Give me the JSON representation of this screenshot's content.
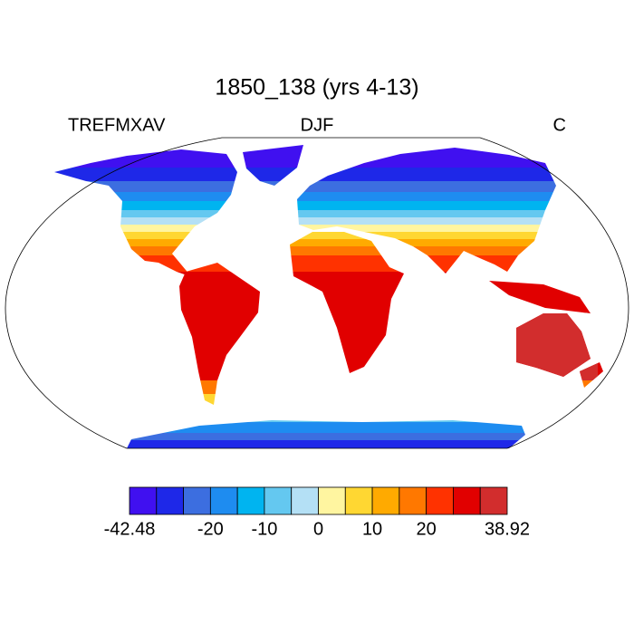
{
  "title": "1850_138 (yrs 4-13)",
  "left_string": "TREFMXAV",
  "center_string": "DJF",
  "right_string": "C",
  "colorbar": {
    "colors": [
      "#4010f0",
      "#1e28e8",
      "#3c6ee0",
      "#1e8cf0",
      "#00b4f0",
      "#64c8f0",
      "#b4e0f5",
      "#fff5a0",
      "#ffd732",
      "#ffaa00",
      "#ff7800",
      "#ff3200",
      "#e10000",
      "#d22d2d"
    ],
    "levels": [
      -42.48,
      -30,
      -25,
      -20,
      -15,
      -10,
      -5,
      0,
      5,
      10,
      15,
      20,
      25,
      30,
      38.92
    ],
    "ticks": [
      -42.48,
      -20,
      -10,
      0,
      10,
      20,
      38.92
    ]
  }
}
